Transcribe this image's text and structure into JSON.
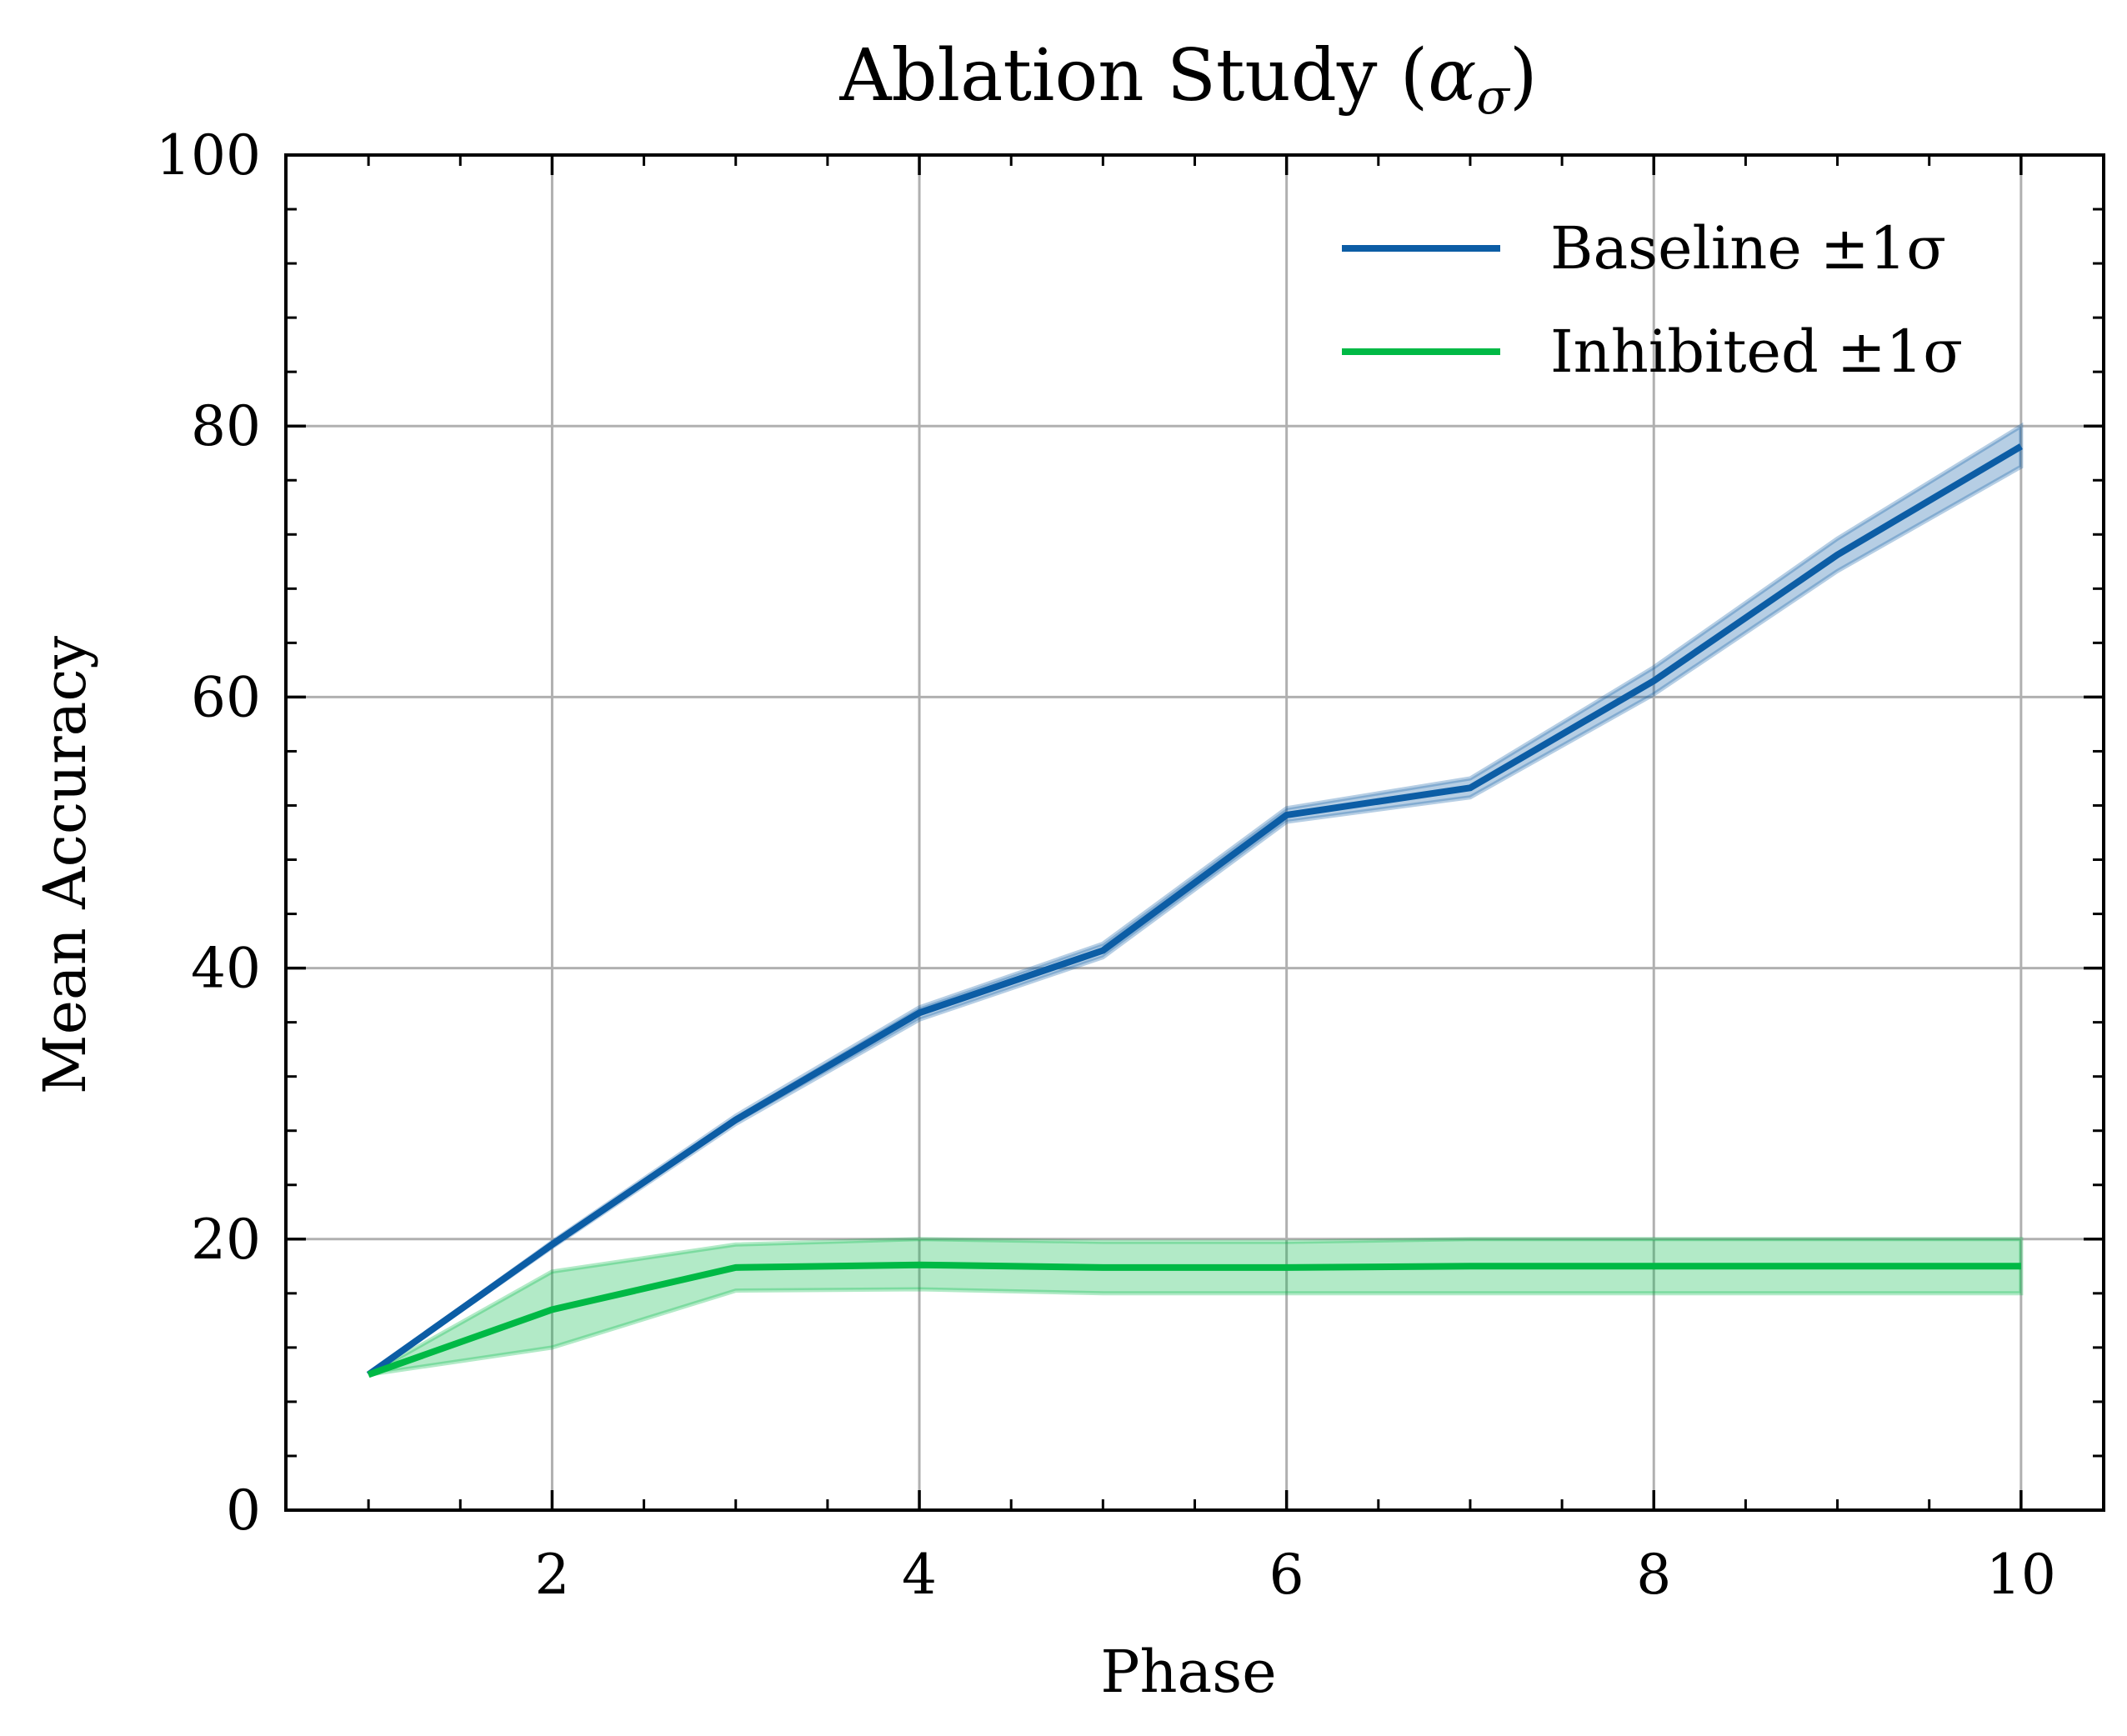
{
  "chart_data": {
    "type": "line",
    "title": "Ablation Study (",
    "title_symbol": "α",
    "title_subscript": "σ",
    "title_close": ")",
    "xlabel": "Phase",
    "ylabel": "Mean Accuracy",
    "xlim": [
      0.55,
      10.45
    ],
    "ylim": [
      0,
      100
    ],
    "xticks": [
      2,
      4,
      6,
      8,
      10
    ],
    "yticks": [
      0,
      20,
      40,
      60,
      80,
      100
    ],
    "xtick_labels": [
      "2",
      "4",
      "6",
      "8",
      "10"
    ],
    "ytick_labels": [
      "0",
      "20",
      "40",
      "60",
      "80",
      "100"
    ],
    "grid": true,
    "legend_position": "top-right",
    "x": [
      1,
      2,
      3,
      4,
      5,
      6,
      7,
      8,
      9,
      10
    ],
    "series": [
      {
        "name": "Baseline ±1σ",
        "color": "#0C5DA5",
        "values": [
          10.0,
          19.6,
          28.8,
          36.7,
          41.3,
          51.3,
          53.3,
          61.2,
          70.5,
          78.5
        ],
        "lower": [
          10.0,
          19.4,
          28.5,
          36.2,
          40.8,
          50.8,
          52.6,
          60.2,
          69.3,
          77.0
        ],
        "upper": [
          10.0,
          19.8,
          29.1,
          37.1,
          41.8,
          51.8,
          54.0,
          62.2,
          71.7,
          80.0
        ]
      },
      {
        "name": "Inhibited ±1σ",
        "color": "#00B945",
        "values": [
          10.0,
          14.8,
          17.9,
          18.1,
          17.9,
          17.9,
          18.0,
          18.0,
          18.0,
          18.0
        ],
        "lower": [
          10.0,
          12.0,
          16.2,
          16.3,
          16.0,
          16.0,
          16.0,
          16.0,
          16.0,
          16.0
        ],
        "upper": [
          10.0,
          17.6,
          19.6,
          20.0,
          19.8,
          19.8,
          20.0,
          20.0,
          20.0,
          20.0
        ]
      }
    ]
  }
}
